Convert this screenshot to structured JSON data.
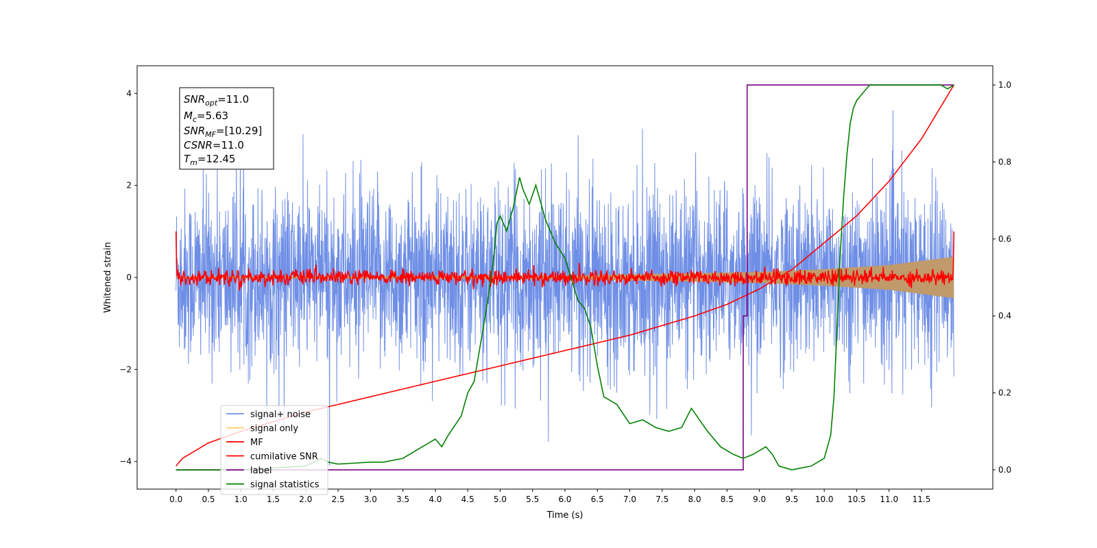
{
  "chart_data": {
    "type": "line",
    "xlabel": "Time (s)",
    "ylabel": "Whitened strain",
    "xlim": [
      -0.6,
      12.6
    ],
    "ylim": [
      -4.6,
      4.6
    ],
    "y2lim": [
      -0.05,
      1.05
    ],
    "x_ticks": [
      0.0,
      0.5,
      1.0,
      1.5,
      2.0,
      2.5,
      3.0,
      3.5,
      4.0,
      4.5,
      5.0,
      5.5,
      6.0,
      6.5,
      7.0,
      7.5,
      8.0,
      8.5,
      9.0,
      9.5,
      10.0,
      10.5,
      11.0,
      11.5
    ],
    "x_tick_labels": [
      "0.0",
      "0.5",
      "1.0",
      "1.5",
      "2.0",
      "2.5",
      "3.0",
      "3.5",
      "4.0",
      "4.5",
      "5.0",
      "5.5",
      "6.0",
      "6.5",
      "7.0",
      "7.5",
      "8.0",
      "8.5",
      "9.0",
      "9.5",
      "10.0",
      "10.5",
      "11.0",
      "11.5"
    ],
    "y_ticks": [
      -4,
      -2,
      0,
      2,
      4
    ],
    "y_tick_labels": [
      "−4",
      "−2",
      "0",
      "2",
      "4"
    ],
    "y2_ticks": [
      0.0,
      0.2,
      0.4,
      0.6,
      0.8,
      1.0
    ],
    "y2_tick_labels": [
      "0.0",
      "0.2",
      "0.4",
      "0.6",
      "0.8",
      "1.0"
    ],
    "grid": false,
    "legend_position": "lower-left",
    "series": [
      {
        "name": "signal+ noise",
        "color": "#6f8fe6",
        "axis": "left",
        "x_range": [
          0.0,
          12.0
        ],
        "typical_amplitude": 1.5,
        "max": 4.2,
        "min": -4.1,
        "values": []
      },
      {
        "name": "signal only",
        "color": "#ffcc66",
        "axis": "left",
        "x_range": [
          0.0,
          12.0
        ],
        "envelope": [
          [
            0.0,
            0.02
          ],
          [
            6.0,
            0.04
          ],
          [
            9.0,
            0.12
          ],
          [
            10.0,
            0.18
          ],
          [
            11.0,
            0.27
          ],
          [
            12.0,
            0.45
          ]
        ]
      },
      {
        "name": "MF",
        "color": "#ff0000",
        "axis": "left",
        "x_range": [
          0.0,
          12.0
        ],
        "typical_amplitude": 0.12,
        "edge_value": 1.0
      },
      {
        "name": "cumilative SNR",
        "color": "#ff0000",
        "axis": "right",
        "x": [
          0.0,
          0.1,
          0.5,
          1.0,
          2.0,
          3.0,
          4.0,
          5.0,
          6.0,
          7.0,
          8.0,
          8.5,
          9.0,
          9.5,
          10.0,
          10.5,
          11.0,
          11.5,
          12.0
        ],
        "values": [
          0.01,
          0.03,
          0.07,
          0.1,
          0.15,
          0.19,
          0.23,
          0.27,
          0.31,
          0.35,
          0.4,
          0.43,
          0.47,
          0.52,
          0.59,
          0.66,
          0.75,
          0.86,
          1.0
        ]
      },
      {
        "name": "label",
        "color": "#7b0080",
        "axis": "right",
        "x": [
          0.0,
          8.75,
          8.75,
          8.81,
          8.81,
          12.0
        ],
        "values": [
          0.0,
          0.0,
          0.4,
          0.4,
          1.0,
          1.0
        ]
      },
      {
        "name": "signal statistics",
        "color": "#008000",
        "axis": "right",
        "x": [
          0.0,
          1.0,
          2.0,
          2.25,
          2.35,
          2.5,
          3.0,
          3.2,
          3.5,
          3.8,
          4.0,
          4.1,
          4.2,
          4.4,
          4.5,
          4.6,
          4.7,
          4.8,
          4.9,
          4.95,
          5.0,
          5.1,
          5.2,
          5.3,
          5.35,
          5.45,
          5.55,
          5.6,
          5.7,
          5.85,
          6.0,
          6.2,
          6.3,
          6.4,
          6.5,
          6.6,
          6.8,
          7.0,
          7.2,
          7.4,
          7.6,
          7.8,
          7.95,
          8.2,
          8.4,
          8.6,
          8.75,
          8.9,
          9.0,
          9.1,
          9.2,
          9.3,
          9.5,
          9.8,
          10.0,
          10.1,
          10.15,
          10.2,
          10.25,
          10.3,
          10.35,
          10.4,
          10.45,
          10.5,
          10.6,
          10.7,
          10.8,
          10.9,
          11.0,
          11.5,
          11.8,
          11.9,
          12.0
        ],
        "values": [
          0.0,
          0.0,
          0.01,
          0.03,
          0.02,
          0.015,
          0.02,
          0.02,
          0.03,
          0.06,
          0.08,
          0.06,
          0.09,
          0.14,
          0.2,
          0.23,
          0.33,
          0.43,
          0.55,
          0.64,
          0.66,
          0.62,
          0.68,
          0.76,
          0.73,
          0.69,
          0.74,
          0.71,
          0.65,
          0.59,
          0.55,
          0.44,
          0.42,
          0.37,
          0.27,
          0.19,
          0.17,
          0.12,
          0.13,
          0.11,
          0.1,
          0.11,
          0.16,
          0.1,
          0.06,
          0.04,
          0.03,
          0.04,
          0.05,
          0.06,
          0.04,
          0.01,
          0.0,
          0.01,
          0.03,
          0.09,
          0.19,
          0.38,
          0.57,
          0.71,
          0.82,
          0.9,
          0.94,
          0.96,
          0.98,
          1.0,
          1.0,
          1.0,
          1.0,
          1.0,
          1.0,
          0.99,
          1.0
        ]
      }
    ],
    "annotations": {
      "snr_opt": {
        "base": "SNR",
        "sub": "opt",
        "value": "=11.0"
      },
      "mc": {
        "base": "M",
        "sub": "c",
        "value": "=5.63"
      },
      "snr_mf": {
        "base": "SNR",
        "sub": "MF",
        "value": "=[10.29]"
      },
      "csnr": {
        "base": "CSNR",
        "sub": "",
        "value": "=11.0"
      },
      "tm": {
        "base": "T",
        "sub": "m",
        "value": "=12.45"
      }
    }
  }
}
